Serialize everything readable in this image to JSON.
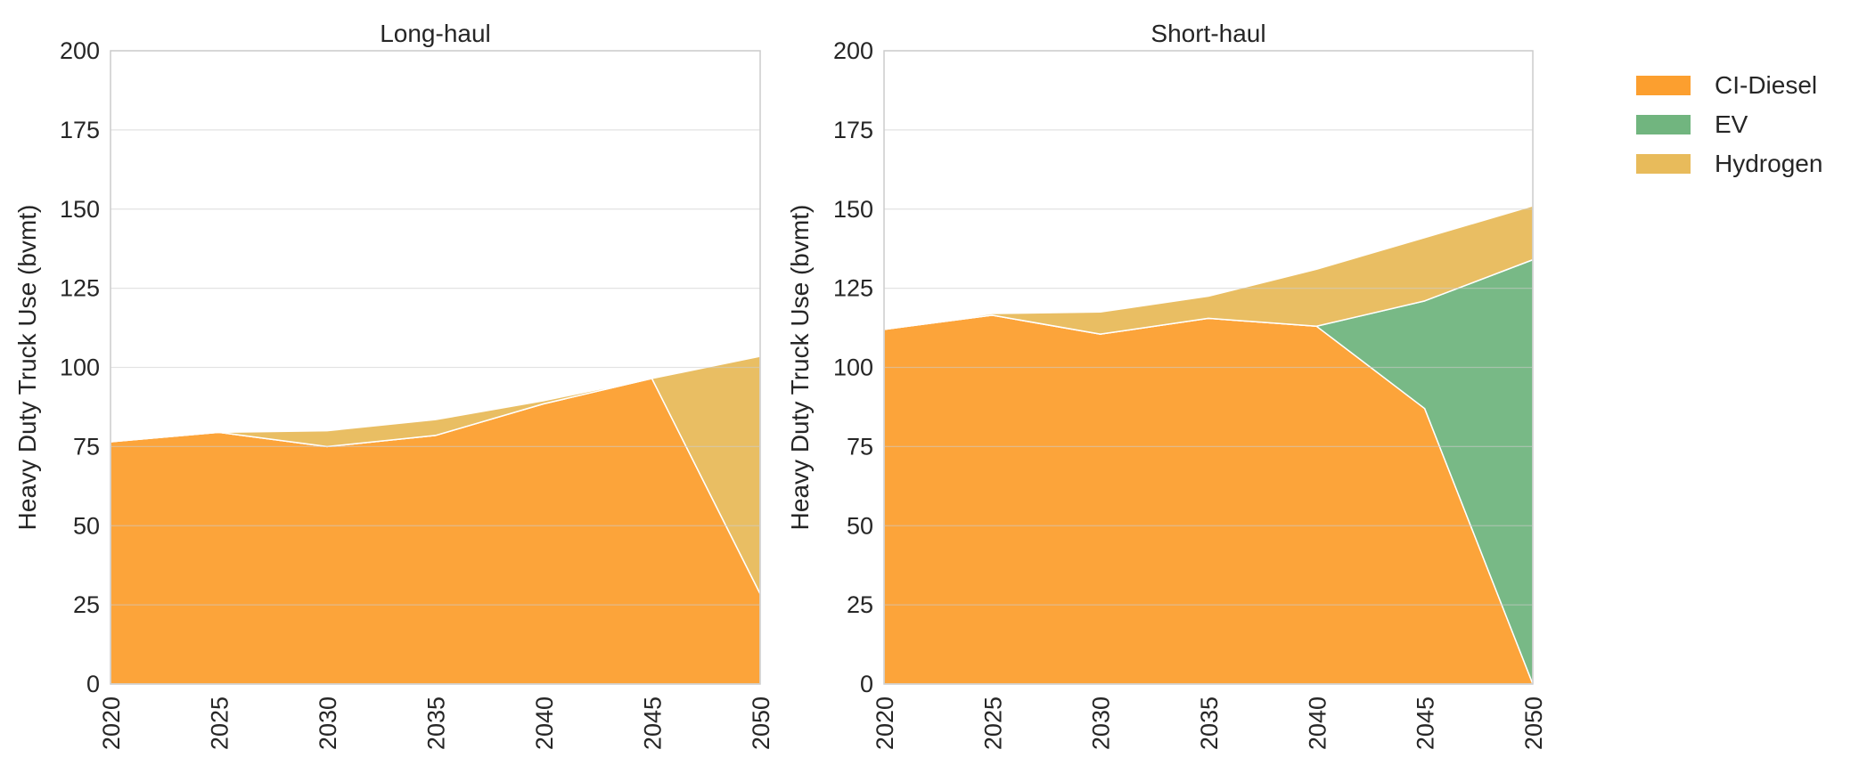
{
  "colors": {
    "CI-Diesel": "#fc9f2f",
    "EV": "#71b57f",
    "Hydrogen": "#e8bb5b",
    "grid": "#cccccc",
    "frame": "#cccccc",
    "background": "#ffffff"
  },
  "legend": {
    "items": [
      {
        "label": "CI-Diesel"
      },
      {
        "label": "EV"
      },
      {
        "label": "Hydrogen"
      }
    ]
  },
  "chart_data": [
    {
      "type": "area",
      "stacked": true,
      "title": "Long-haul",
      "xlabel": "",
      "ylabel": "Heavy Duty Truck Use (bvmt)",
      "x": [
        2020,
        2025,
        2030,
        2035,
        2040,
        2045,
        2050
      ],
      "xticks": [
        "2020",
        "2025",
        "2030",
        "2035",
        "2040",
        "2045",
        "2050"
      ],
      "yticks": [
        "0",
        "25",
        "50",
        "75",
        "100",
        "125",
        "150",
        "175",
        "200"
      ],
      "ylim": [
        0,
        200
      ],
      "xlim": [
        2020,
        2050
      ],
      "grid": "horizontal",
      "series": [
        {
          "name": "CI-Diesel",
          "values": [
            76.5,
            79.5,
            75,
            78.5,
            88.5,
            96.5,
            28.5
          ]
        },
        {
          "name": "EV",
          "values": [
            0,
            0,
            0,
            0,
            0,
            0,
            0
          ]
        },
        {
          "name": "Hydrogen",
          "values": [
            0,
            0,
            5,
            5,
            1,
            0,
            75
          ]
        }
      ]
    },
    {
      "type": "area",
      "stacked": true,
      "title": "Short-haul",
      "xlabel": "",
      "ylabel": "Heavy Duty Truck Use (bvmt)",
      "x": [
        2020,
        2025,
        2030,
        2035,
        2040,
        2045,
        2050
      ],
      "xticks": [
        "2020",
        "2025",
        "2030",
        "2035",
        "2040",
        "2045",
        "2050"
      ],
      "yticks": [
        "0",
        "25",
        "50",
        "75",
        "100",
        "125",
        "150",
        "175",
        "200"
      ],
      "ylim": [
        0,
        200
      ],
      "xlim": [
        2020,
        2050
      ],
      "grid": "horizontal",
      "series": [
        {
          "name": "CI-Diesel",
          "values": [
            112,
            116.5,
            110.5,
            115.5,
            113,
            87,
            0
          ]
        },
        {
          "name": "EV",
          "values": [
            0,
            0,
            0,
            0,
            0,
            34,
            134
          ]
        },
        {
          "name": "Hydrogen",
          "values": [
            0,
            0.5,
            7,
            7,
            18,
            20,
            17
          ]
        }
      ]
    }
  ]
}
